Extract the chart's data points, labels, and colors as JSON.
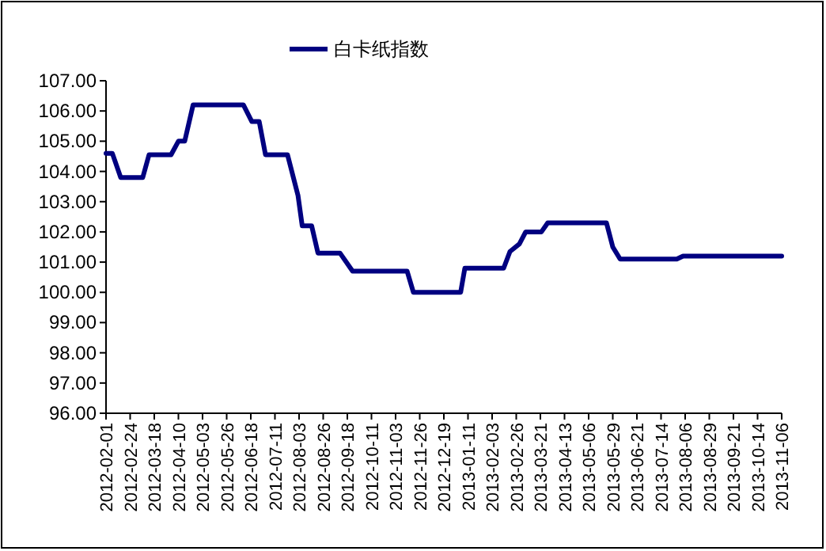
{
  "chart_data": {
    "type": "line",
    "legend": "top",
    "marker": "none",
    "grid": false,
    "series": [
      {
        "name": "白卡纸指数",
        "color": "#000080",
        "x": [
          "2012-02-01",
          "2012-02-07",
          "2012-02-15",
          "2012-03-07",
          "2012-03-13",
          "2012-04-03",
          "2012-04-10",
          "2012-04-16",
          "2012-04-24",
          "2012-06-11",
          "2012-06-19",
          "2012-06-26",
          "2012-07-02",
          "2012-07-23",
          "2012-08-02",
          "2012-08-06",
          "2012-08-15",
          "2012-08-21",
          "2012-09-11",
          "2012-09-23",
          "2012-11-14",
          "2012-11-20",
          "2013-01-04",
          "2013-01-08",
          "2013-02-14",
          "2013-02-20",
          "2013-03-01",
          "2013-03-07",
          "2013-03-22",
          "2013-03-28",
          "2013-05-23",
          "2013-05-29",
          "2013-06-05",
          "2013-07-29",
          "2013-08-04",
          "2013-11-06"
        ],
        "values": [
          104.6,
          104.6,
          103.8,
          103.8,
          104.55,
          104.55,
          105.0,
          105.0,
          106.2,
          106.2,
          105.65,
          105.65,
          104.55,
          104.55,
          103.2,
          102.2,
          102.2,
          101.3,
          101.3,
          100.7,
          100.7,
          100.0,
          100.0,
          100.8,
          100.8,
          101.35,
          101.6,
          102.0,
          102.0,
          102.3,
          102.3,
          101.5,
          101.1,
          101.1,
          101.2,
          101.2
        ]
      }
    ],
    "xlim": [
      "2012-02-01",
      "2013-11-06"
    ],
    "xticks": [
      "2012-02-01",
      "2012-02-24",
      "2012-03-18",
      "2012-04-10",
      "2012-05-03",
      "2012-05-26",
      "2012-06-18",
      "2012-07-11",
      "2012-08-03",
      "2012-08-26",
      "2012-09-18",
      "2012-10-11",
      "2012-11-03",
      "2012-11-26",
      "2012-12-19",
      "2013-01-11",
      "2013-02-03",
      "2013-02-26",
      "2013-03-21",
      "2013-04-13",
      "2013-05-06",
      "2013-05-29",
      "2013-06-21",
      "2013-07-14",
      "2013-08-06",
      "2013-08-29",
      "2013-09-21",
      "2013-10-14",
      "2013-11-06"
    ],
    "ylim": [
      96,
      107
    ],
    "yticks": [
      {
        "value": 96,
        "label": "96.00"
      },
      {
        "value": 97,
        "label": "97.00"
      },
      {
        "value": 98,
        "label": "98.00"
      },
      {
        "value": 99,
        "label": "99.00"
      },
      {
        "value": 100,
        "label": "100.00"
      },
      {
        "value": 101,
        "label": "101.00"
      },
      {
        "value": 102,
        "label": "102.00"
      },
      {
        "value": 103,
        "label": "103.00"
      },
      {
        "value": 104,
        "label": "104.00"
      },
      {
        "value": 105,
        "label": "105.00"
      },
      {
        "value": 106,
        "label": "106.00"
      },
      {
        "value": 107,
        "label": "107.00"
      }
    ]
  }
}
